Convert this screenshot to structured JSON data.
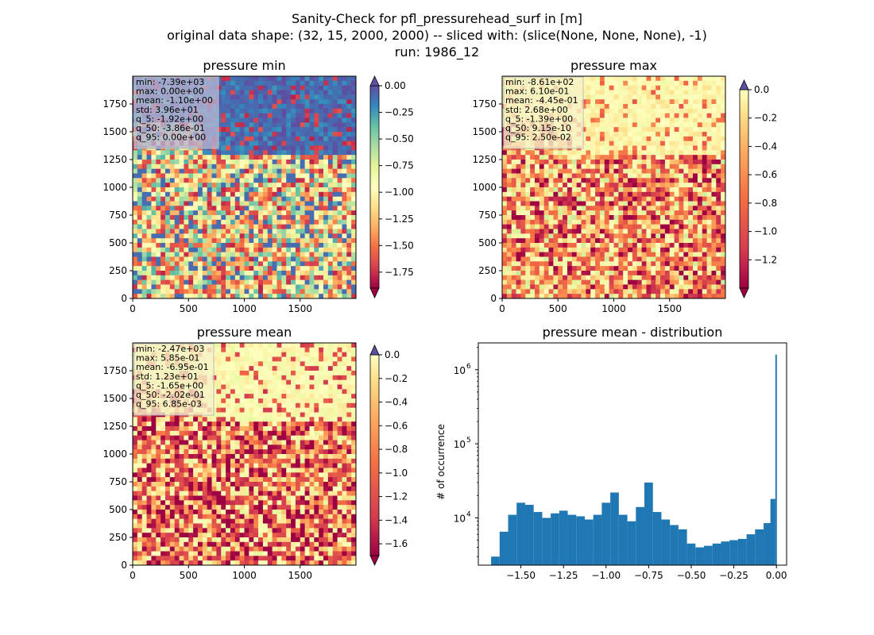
{
  "figure": {
    "title_lines": [
      "Sanity-Check for pfl_pressurehead_surf in [m]",
      "original data shape: (32, 15, 2000, 2000) -- sliced with: (slice(None, None, None), -1)",
      "run: 1986_12"
    ]
  },
  "chart_data": [
    {
      "type": "heatmap",
      "title": "pressure min",
      "xlim": [
        0,
        2000
      ],
      "ylim": [
        0,
        2000
      ],
      "xticks": [
        0,
        500,
        1000,
        1500
      ],
      "yticks": [
        0,
        250,
        500,
        750,
        1000,
        1250,
        1500,
        1750
      ],
      "colormap": "Spectral",
      "colorbar": {
        "vmin": -1.9,
        "vmax": 0.0,
        "ticks": [
          0.0,
          -0.25,
          -0.5,
          -0.75,
          -1.0,
          -1.25,
          -1.5,
          -1.75
        ],
        "tick_labels": [
          "0.00",
          "−0.25",
          "−0.50",
          "−0.75",
          "−1.00",
          "−1.25",
          "−1.50",
          "−1.75"
        ],
        "extend": "both"
      },
      "stats": [
        "min: -7.39e+03",
        "max: 0.00e+00",
        "mean: -1.10e+00",
        "std: 3.96e+01",
        "q_5: -1.92e+00",
        "q_50: -3.86e-01",
        "q_95: 0.00e+00"
      ],
      "stats_box_color": "#b4b4d2"
    },
    {
      "type": "heatmap",
      "title": "pressure max",
      "xlim": [
        0,
        2000
      ],
      "ylim": [
        0,
        2000
      ],
      "xticks": [
        0,
        500,
        1000,
        1500
      ],
      "yticks": [
        0,
        250,
        500,
        750,
        1000,
        1250,
        1500,
        1750
      ],
      "colormap": "Spectral",
      "colorbar": {
        "vmin": -1.4,
        "vmax": 0.0,
        "ticks": [
          0.0,
          -0.2,
          -0.4,
          -0.6,
          -0.8,
          -1.0,
          -1.2
        ],
        "tick_labels": [
          "0.0",
          "−0.2",
          "−0.4",
          "−0.6",
          "−0.8",
          "−1.0",
          "−1.2"
        ],
        "extend": "both"
      },
      "stats": [
        "min: -8.61e+02",
        "max: 6.10e-01",
        "mean: -4.45e-01",
        "std: 2.68e+00",
        "q_5: -1.39e+00",
        "q_50: 9.15e-10",
        "q_95: 2.50e-02"
      ],
      "stats_box_color": "#f6f2c8"
    },
    {
      "type": "heatmap",
      "title": "pressure mean",
      "xlim": [
        0,
        2000
      ],
      "ylim": [
        0,
        2000
      ],
      "xticks": [
        0,
        500,
        1000,
        1500
      ],
      "yticks": [
        0,
        250,
        500,
        750,
        1000,
        1250,
        1500,
        1750
      ],
      "colormap": "Spectral",
      "colorbar": {
        "vmin": -1.7,
        "vmax": 0.0,
        "ticks": [
          0.0,
          -0.2,
          -0.4,
          -0.6,
          -0.8,
          -1.0,
          -1.2,
          -1.4,
          -1.6
        ],
        "tick_labels": [
          "0.0",
          "−0.2",
          "−0.4",
          "−0.6",
          "−0.8",
          "−1.0",
          "−1.2",
          "−1.4",
          "−1.6"
        ],
        "extend": "both"
      },
      "stats": [
        "min: -2.47e+03",
        "max: 5.85e-01",
        "mean: -6.95e-01",
        "std: 1.23e+01",
        "q_5: -1.65e+00",
        "q_50: -2.02e-01",
        "q_95: 6.85e-03"
      ],
      "stats_box_color": "#f6f2c8"
    },
    {
      "type": "bar",
      "title": "pressure mean - distribution",
      "ylabel": "# of occurrence",
      "yscale": "log",
      "xlim": [
        -1.75,
        0.06
      ],
      "ylim": [
        2300,
        2300000
      ],
      "xticks": [
        -1.5,
        -1.25,
        -1.0,
        -0.75,
        -0.5,
        -0.25,
        0.0
      ],
      "xtick_labels": [
        "−1.50",
        "−1.25",
        "−1.00",
        "−0.75",
        "−0.50",
        "−0.25",
        "0.00"
      ],
      "yticks": [
        10000,
        100000,
        1000000
      ],
      "ytick_labels": [
        [
          "10",
          "4"
        ],
        [
          "10",
          "5"
        ],
        [
          "10",
          "6"
        ]
      ],
      "bar_color": "#1f77b4",
      "x": [
        -1.65,
        -1.6,
        -1.55,
        -1.5,
        -1.45,
        -1.4,
        -1.35,
        -1.3,
        -1.25,
        -1.2,
        -1.15,
        -1.1,
        -1.05,
        -1.0,
        -0.95,
        -0.9,
        -0.85,
        -0.8,
        -0.75,
        -0.7,
        -0.65,
        -0.6,
        -0.55,
        -0.5,
        -0.45,
        -0.4,
        -0.35,
        -0.3,
        -0.25,
        -0.2,
        -0.15,
        -0.1,
        -0.05,
        -0.01,
        0.0
      ],
      "values": [
        3000,
        6500,
        11000,
        16000,
        15000,
        12000,
        10000,
        11500,
        12500,
        11000,
        10500,
        9500,
        11000,
        16000,
        22000,
        11000,
        9000,
        14000,
        30000,
        12000,
        9500,
        8000,
        7000,
        4500,
        4000,
        4200,
        4500,
        4800,
        5000,
        5200,
        6000,
        7000,
        8500,
        18000,
        1600000
      ]
    }
  ]
}
